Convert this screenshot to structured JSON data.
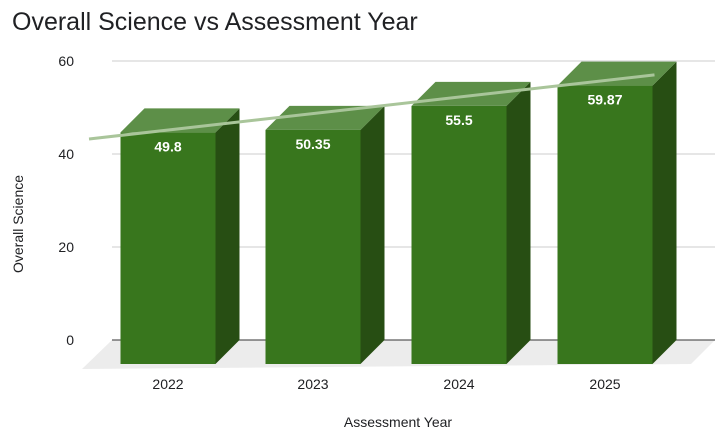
{
  "chart_data": {
    "type": "bar",
    "title": "Overall Science vs Assessment Year",
    "xlabel": "Assessment Year",
    "ylabel": "Overall Science",
    "categories": [
      "2022",
      "2023",
      "2024",
      "2025"
    ],
    "series": [
      {
        "values": [
          49.8,
          50.35,
          55.5,
          59.87
        ],
        "data_labels": [
          "49.8",
          "50.35",
          "55.5",
          "59.87"
        ]
      }
    ],
    "ylim": [
      0,
      60
    ],
    "yticks": [
      "0",
      "20",
      "40",
      "60"
    ],
    "grid": true,
    "legend": "none",
    "style": "3d",
    "trendline": "linear",
    "colors": {
      "bar_front": "#38761d",
      "bar_top": "#5d8f48",
      "bar_side": "#274e13",
      "trendline": "#a9c59a",
      "grid": "#cccccc",
      "floor": "#ececec"
    }
  }
}
